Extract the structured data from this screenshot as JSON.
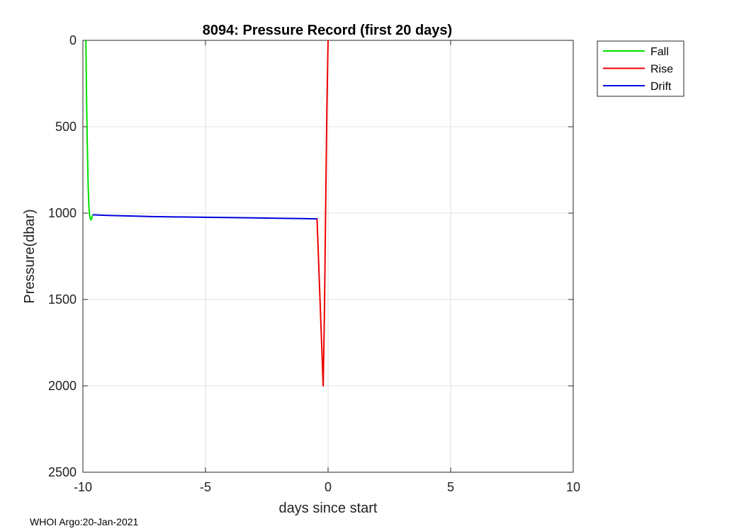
{
  "chart_data": {
    "type": "line",
    "title": "8094: Pressure Record (first 20 days)",
    "xlabel": "days since start",
    "ylabel": "Pressure(dbar)",
    "xlim": [
      -10,
      10
    ],
    "ylim": [
      0,
      2500
    ],
    "y_reversed": true,
    "grid": true,
    "legend_position": "outside-top-right",
    "xticks": [
      -10,
      -5,
      0,
      5,
      10
    ],
    "yticks": [
      0,
      500,
      1000,
      1500,
      2000,
      2500
    ],
    "xtick_labels": [
      "-10",
      "-5",
      "0",
      "5",
      "10"
    ],
    "ytick_labels": [
      "0",
      "500",
      "1000",
      "1500",
      "2000",
      "2500"
    ],
    "series": [
      {
        "name": "Fall",
        "color": "#00e000",
        "x": [
          -9.88,
          -9.87,
          -9.85,
          -9.82,
          -9.79,
          -9.76,
          -9.73,
          -9.7,
          -9.67,
          -9.65,
          -9.62,
          -9.6
        ],
        "y": [
          0,
          100,
          350,
          600,
          820,
          950,
          1010,
          1030,
          1040,
          1035,
          1020,
          1010
        ]
      },
      {
        "name": "Rise",
        "color": "#ee0000",
        "x": [
          -0.45,
          -0.2,
          -0.15,
          -0.1,
          -0.05,
          0.0
        ],
        "y": [
          1030,
          2000,
          1600,
          1000,
          400,
          0
        ]
      },
      {
        "name": "Drift",
        "color": "#0000dd",
        "x": [
          -9.6,
          -9.0,
          -8.0,
          -7.2,
          -5.0,
          -3.0,
          -1.0,
          -0.45
        ],
        "y": [
          1010,
          1013,
          1017,
          1020,
          1024,
          1028,
          1032,
          1033
        ]
      }
    ]
  },
  "footer": "WHOI Argo:20-Jan-2021"
}
